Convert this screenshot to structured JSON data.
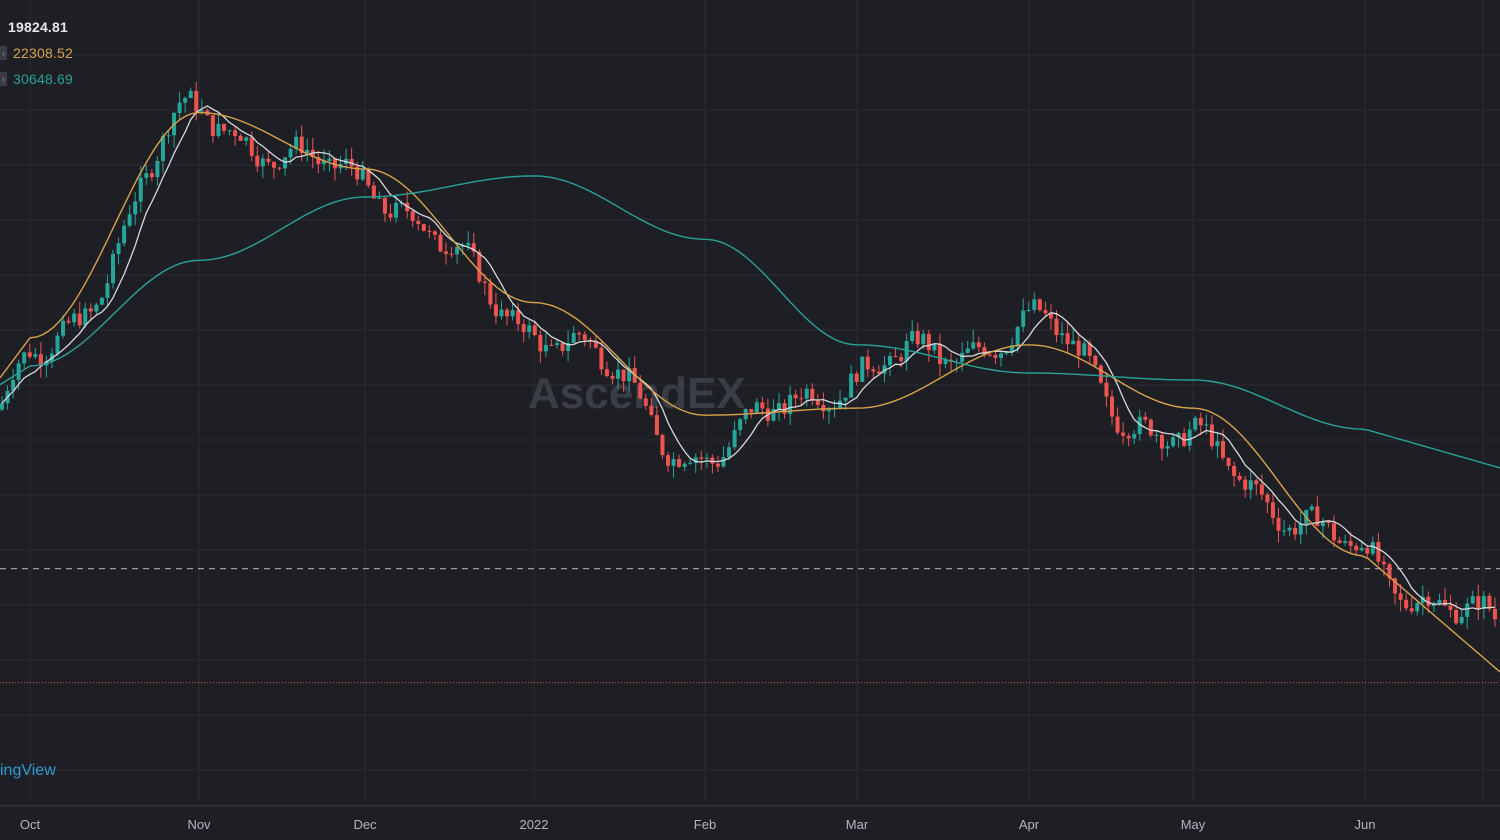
{
  "legend": {
    "price": {
      "value": "19824.81",
      "color": "#e6e7ea"
    },
    "ma_mid": {
      "value": "22308.52",
      "color": "#d9a24a"
    },
    "ma_long": {
      "value": "30648.69",
      "color": "#2aa198"
    }
  },
  "brand": "ingView",
  "watermark": "AscendEX",
  "colors": {
    "background": "#1e1f25",
    "grid": "#2a2c33",
    "up": "#26a69a",
    "down": "#ef5350",
    "ma_short": "#d8d8dc",
    "ma_mid": "#d9a24a",
    "ma_long": "#2aa198",
    "dashed_line": "#9a9ca3",
    "last_price_line": "#e0673f"
  },
  "chart_data": {
    "type": "candlestick",
    "title": "",
    "xlabel": "",
    "ylabel": "",
    "ylim": [
      16000,
      70000
    ],
    "x_ticks": [
      "Oct",
      "Nov",
      "Dec",
      "2022",
      "Feb",
      "Mar",
      "Apr",
      "May",
      "Jun"
    ],
    "series": [
      {
        "name": "22308.52",
        "kind": "moving-average",
        "anchors": [
          [
            "Oct",
            46000
          ],
          [
            "Nov",
            62000
          ],
          [
            "Dec",
            58000
          ],
          [
            "2022",
            48500
          ],
          [
            "Feb",
            40500
          ],
          [
            "Mar",
            41000
          ],
          [
            "Apr",
            45500
          ],
          [
            "May",
            41000
          ],
          [
            "Jun",
            30500
          ]
        ]
      },
      {
        "name": "30648.69",
        "kind": "moving-average",
        "anchors": [
          [
            "Oct",
            44000
          ],
          [
            "Nov",
            51500
          ],
          [
            "Dec",
            56000
          ],
          [
            "2022",
            57500
          ],
          [
            "Feb",
            53000
          ],
          [
            "Mar",
            45500
          ],
          [
            "Apr",
            43500
          ],
          [
            "May",
            43000
          ],
          [
            "Jun",
            39500
          ]
        ]
      }
    ],
    "candles_daily_close_path": [
      [
        "Oct",
        44000
      ],
      [
        "Nov",
        61500
      ],
      [
        "Dec",
        57000
      ],
      [
        "2022",
        47000
      ],
      [
        "Feb",
        38000
      ],
      [
        "Mar",
        43500
      ],
      [
        "Apr",
        46500
      ],
      [
        "May",
        38000
      ],
      [
        "Jun",
        30500
      ]
    ],
    "reference_lines": [
      {
        "style": "dashed",
        "value": 29600
      },
      {
        "style": "dotted",
        "value": 21500
      }
    ],
    "last_values": {
      "price": 19824.81,
      "ma_mid": 22308.52,
      "ma_long": 30648.69
    }
  }
}
